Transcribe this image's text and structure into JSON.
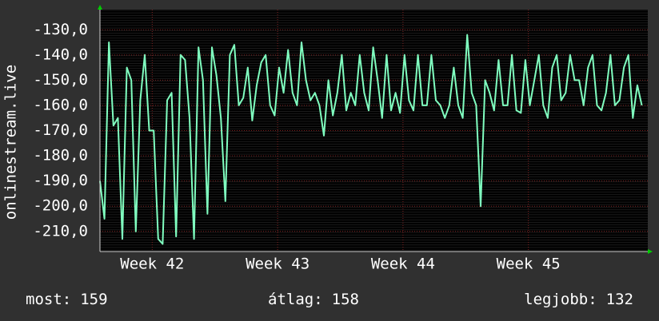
{
  "chart_data": {
    "type": "line",
    "y_label": "onlinestream.live",
    "x": [
      0,
      6,
      12,
      18,
      24,
      30,
      36,
      42,
      48,
      54,
      60,
      66,
      72,
      78,
      84,
      90,
      96,
      102,
      108,
      114,
      120,
      126,
      132,
      138,
      144,
      150,
      156,
      162,
      168,
      174,
      180,
      186,
      192,
      198,
      204,
      210,
      216,
      222,
      228,
      234,
      240,
      246,
      252,
      258,
      264,
      270,
      276,
      282,
      288,
      294,
      300,
      306,
      312,
      318,
      324,
      330,
      336,
      342,
      348,
      354,
      360,
      366,
      372,
      378,
      384,
      390,
      396,
      402,
      408,
      414,
      420,
      426,
      432,
      438,
      444,
      450,
      456,
      462,
      468,
      474,
      480,
      486,
      492,
      498,
      504,
      510,
      516,
      522,
      528,
      534,
      540,
      546,
      552,
      558,
      564,
      570,
      576,
      582,
      588,
      594,
      600,
      606,
      612,
      618,
      624,
      630,
      636,
      642,
      648,
      654,
      660,
      666,
      672,
      678,
      684,
      690,
      696,
      702,
      708,
      714,
      720,
      726
    ],
    "series": [
      {
        "color": "#80ffc0",
        "values": [
          -190,
          -205,
          -135,
          -168,
          -165,
          -213,
          -145,
          -150,
          -210,
          -158,
          -140,
          -170,
          -170,
          -213,
          -215,
          -158,
          -155,
          -212,
          -140,
          -142,
          -165,
          -213,
          -137,
          -150,
          -203,
          -137,
          -148,
          -165,
          -198,
          -140,
          -136,
          -160,
          -157,
          -145,
          -166,
          -152,
          -143,
          -140,
          -160,
          -164,
          -145,
          -155,
          -138,
          -155,
          -160,
          -135,
          -150,
          -158,
          -155,
          -160,
          -172,
          -150,
          -164,
          -155,
          -140,
          -162,
          -155,
          -160,
          -140,
          -155,
          -162,
          -137,
          -150,
          -165,
          -140,
          -162,
          -155,
          -163,
          -140,
          -158,
          -162,
          -140,
          -160,
          -160,
          -140,
          -158,
          -160,
          -165,
          -160,
          -145,
          -160,
          -165,
          -132,
          -155,
          -160,
          -200,
          -150,
          -155,
          -162,
          -142,
          -160,
          -160,
          -140,
          -162,
          -163,
          -142,
          -160,
          -150,
          -140,
          -160,
          -165,
          -145,
          -140,
          -158,
          -155,
          -140,
          -150,
          -150,
          -160,
          -145,
          -140,
          -160,
          -162,
          -155,
          -140,
          -160,
          -158,
          -145,
          -140,
          -165,
          -152,
          -160
        ]
      }
    ],
    "xlim": [
      0,
      734
    ],
    "xticks": [
      {
        "value": 70,
        "label": "Week 42"
      },
      {
        "value": 238,
        "label": "Week 43"
      },
      {
        "value": 406,
        "label": "Week 44"
      },
      {
        "value": 574,
        "label": "Week 45"
      }
    ],
    "ylim": [
      -218,
      -122
    ],
    "yticks": [
      {
        "value": -130,
        "label": "-130,0"
      },
      {
        "value": -140,
        "label": "-140,0"
      },
      {
        "value": -150,
        "label": "-150,0"
      },
      {
        "value": -160,
        "label": "-160,0"
      },
      {
        "value": -170,
        "label": "-170,0"
      },
      {
        "value": -180,
        "label": "-180,0"
      },
      {
        "value": -190,
        "label": "-190,0"
      },
      {
        "value": -200,
        "label": "-200,0"
      },
      {
        "value": -210,
        "label": "-210,0"
      }
    ],
    "grid": true,
    "stats": [
      {
        "label": "most:",
        "value": 159
      },
      {
        "label": "átlag:",
        "value": 158
      },
      {
        "label": "legjobb:",
        "value": 132
      }
    ]
  }
}
